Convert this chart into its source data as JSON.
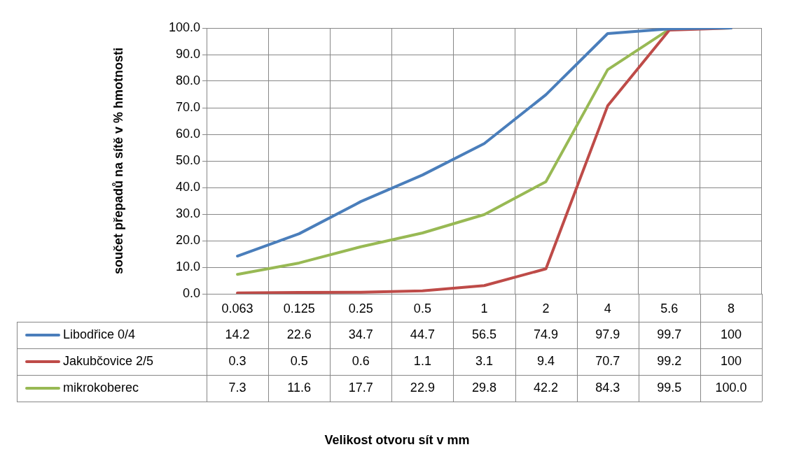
{
  "chart_data": {
    "type": "line",
    "ylabel": "součet přepadů na sítě v % hmotnosti",
    "annotations": [
      "Velikost otvoru sít v mm"
    ],
    "categories": [
      "0.063",
      "0.125",
      "0.25",
      "0.5",
      "1",
      "2",
      "4",
      "5.6",
      "8"
    ],
    "series": [
      {
        "name": "Libodřice 0/4",
        "color": "#4a7ebb",
        "values": [
          14.2,
          22.6,
          34.7,
          44.7,
          56.5,
          74.9,
          97.9,
          99.7,
          100
        ],
        "value_labels": [
          "14.2",
          "22.6",
          "34.7",
          "44.7",
          "56.5",
          "74.9",
          "97.9",
          "99.7",
          "100"
        ]
      },
      {
        "name": "Jakubčovice 2/5",
        "color": "#be4b48",
        "values": [
          0.3,
          0.5,
          0.6,
          1.1,
          3.1,
          9.4,
          70.7,
          99.2,
          100
        ],
        "value_labels": [
          "0.3",
          "0.5",
          "0.6",
          "1.1",
          "3.1",
          "9.4",
          "70.7",
          "99.2",
          "100"
        ]
      },
      {
        "name": "mikrokoberec",
        "color": "#98b954",
        "values": [
          7.3,
          11.6,
          17.7,
          22.9,
          29.8,
          42.2,
          84.3,
          99.5,
          100.0
        ],
        "value_labels": [
          "7.3",
          "11.6",
          "17.7",
          "22.9",
          "29.8",
          "42.2",
          "84.3",
          "99.5",
          "100.0"
        ]
      }
    ],
    "ylim": [
      0,
      100
    ],
    "yticks": [
      {
        "value": 0,
        "label": "0.0"
      },
      {
        "value": 10,
        "label": "10.0"
      },
      {
        "value": 20,
        "label": "20.0"
      },
      {
        "value": 30,
        "label": "30.0"
      },
      {
        "value": 40,
        "label": "40.0"
      },
      {
        "value": 50,
        "label": "50.0"
      },
      {
        "value": 60,
        "label": "60.0"
      },
      {
        "value": 70,
        "label": "70.0"
      },
      {
        "value": 80,
        "label": "80.0"
      },
      {
        "value": 90,
        "label": "90.0"
      },
      {
        "value": 100,
        "label": "100.0"
      }
    ],
    "grid": true,
    "legend": "bottom",
    "marker": "none",
    "line_style": "solid"
  }
}
